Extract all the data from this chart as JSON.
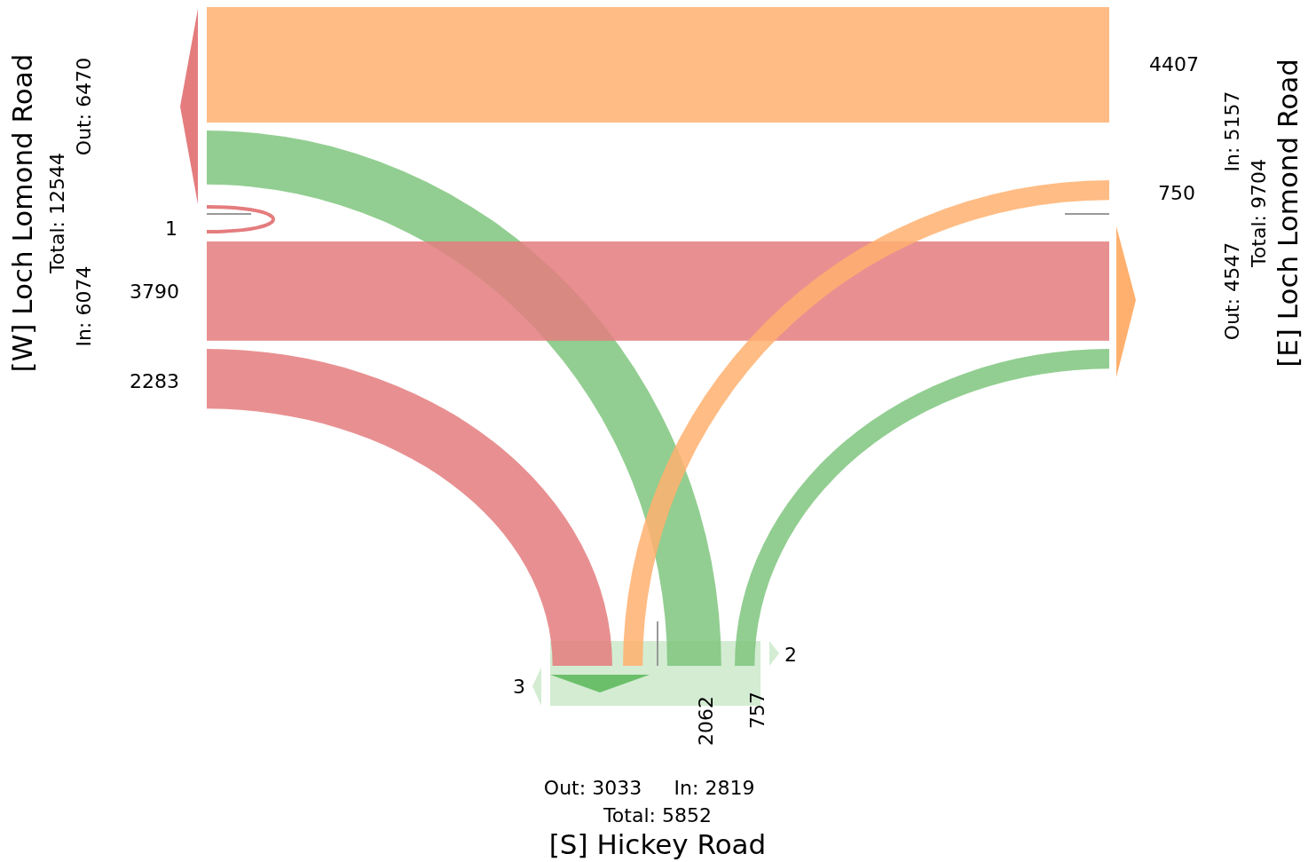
{
  "chart_data": {
    "type": "other",
    "categories": [
      "[W] Loch Lomond Road",
      "[E] Loch Lomond Road",
      "[S] Hickey Road"
    ],
    "series": [
      {
        "colors": [
          "#e47c7e",
          "#ffb06e",
          "#7fc67e"
        ],
        "values": [
          1,
          4407,
          2062
        ]
      },
      {
        "colors": [
          "#e47c7e",
          null,
          "#7fc67e"
        ],
        "values": [
          3790,
          null,
          757
        ]
      },
      {
        "colors": [
          "#e47c7e",
          "#ffb06e",
          null
        ],
        "values": [
          2283,
          750,
          null
        ]
      }
    ],
    "data_labels": true,
    "annotations": [
      "Total: 12544",
      "Out: 6470",
      "In: 6074",
      "In: 5157",
      "Total: 9704",
      "Out: 4547",
      "Out: 3033",
      "In: 2819",
      "Total: 5852",
      "2",
      "3"
    ]
  }
}
